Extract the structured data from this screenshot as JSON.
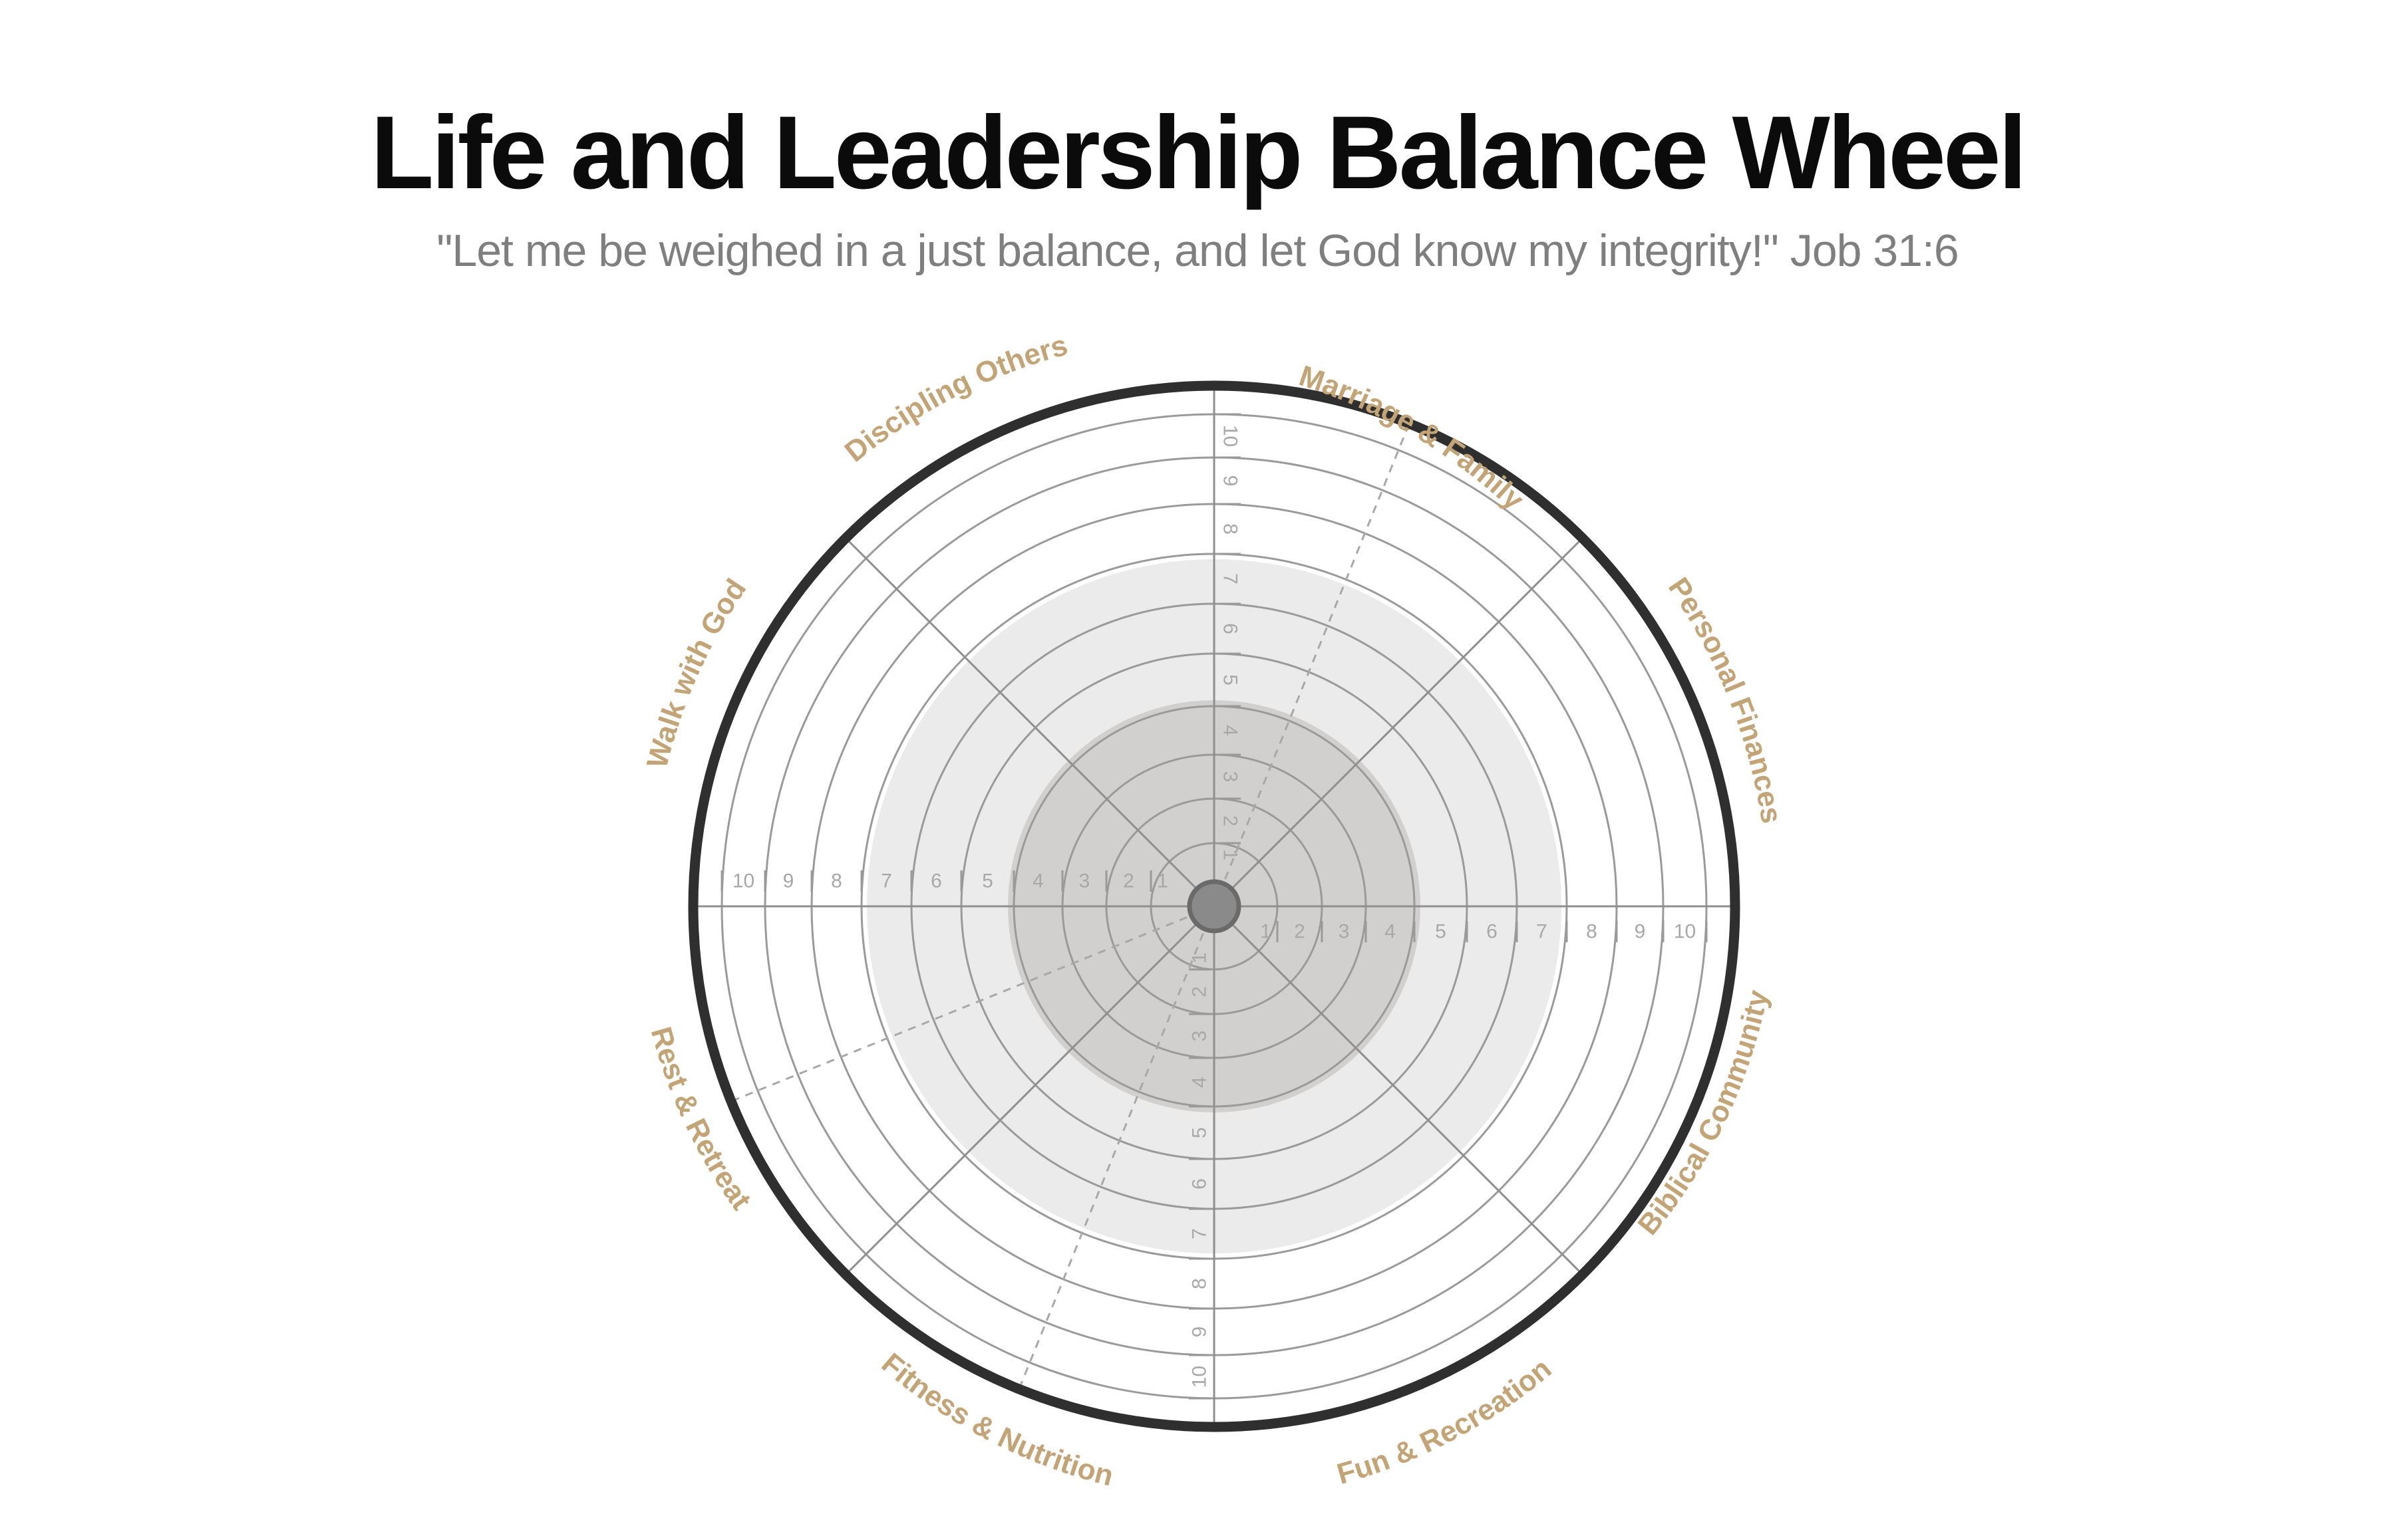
{
  "header": {
    "title": "Life and Leadership Balance Wheel",
    "subtitle": "\"Let me be weighed in a just balance, and let God know my integrity!\" Job 31:6"
  },
  "wheel": {
    "categories": [
      "Marriage & Family",
      "Personal Finances",
      "Biblical Community",
      "Fun & Recreation",
      "Fitness & Nutrition",
      "Rest  & Retreat",
      "Walk with God",
      "Discipling Others"
    ],
    "scale": [
      "1",
      "2",
      "3",
      "4",
      "5",
      "6",
      "7",
      "8",
      "9",
      "10"
    ],
    "colors": {
      "label": "#c2a477",
      "outer_ring": "#2f2f2f",
      "ring": "#9a9a9a",
      "inner_fill": "#d2d0ce",
      "middle_fill": "#ebebeb",
      "tick": "#a8a8a8"
    }
  }
}
